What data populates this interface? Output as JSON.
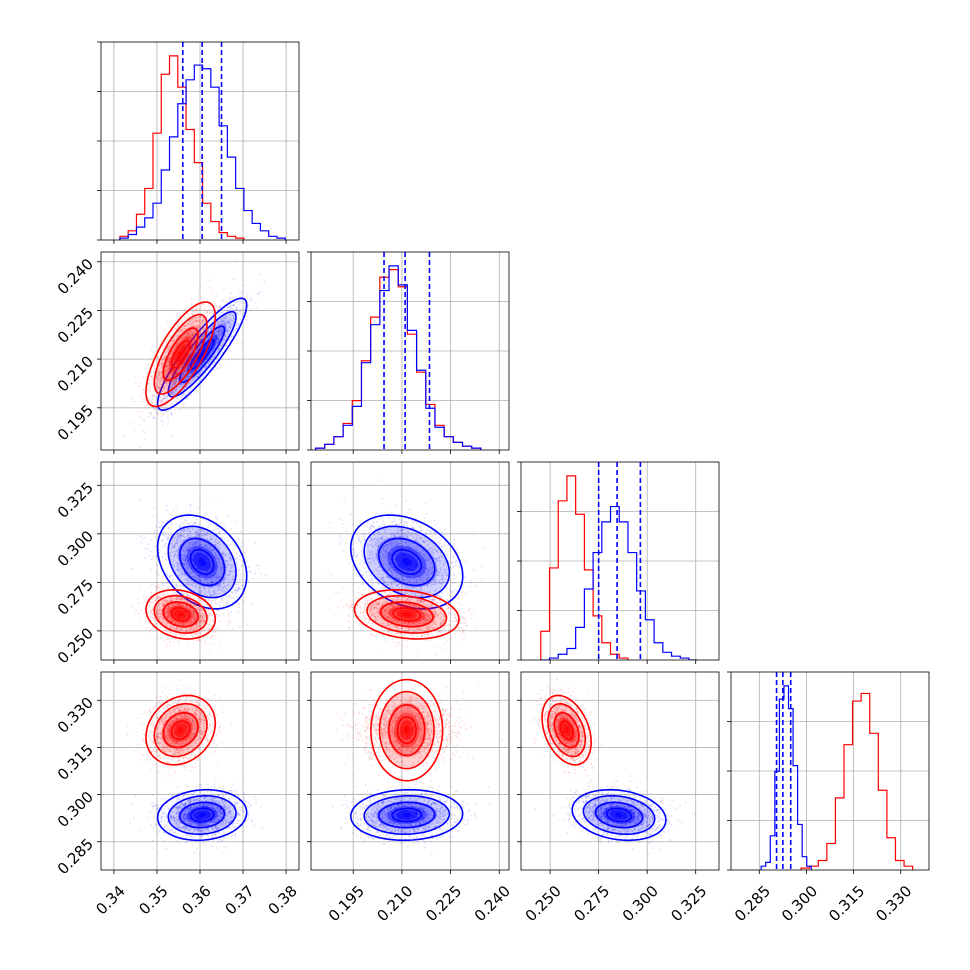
{
  "chart_data": {
    "type": "corner",
    "parameters": [
      {
        "range": [
          0.337,
          0.383
        ],
        "ticks": [
          0.34,
          0.35,
          0.36,
          0.37,
          0.38
        ],
        "tick_labels": [
          "0.34",
          "0.35",
          "0.36",
          "0.37",
          "0.38"
        ]
      },
      {
        "range": [
          0.182,
          0.243
        ],
        "ticks": [
          0.195,
          0.21,
          0.225,
          0.24
        ],
        "tick_labels": [
          "0.195",
          "0.210",
          "0.225",
          "0.240"
        ]
      },
      {
        "range": [
          0.235,
          0.337
        ],
        "ticks": [
          0.25,
          0.275,
          0.3,
          0.325
        ],
        "tick_labels": [
          "0.250",
          "0.275",
          "0.300",
          "0.325"
        ]
      },
      {
        "range": [
          0.276,
          0.339
        ],
        "ticks": [
          0.285,
          0.3,
          0.315,
          0.33
        ],
        "tick_labels": [
          "0.285",
          "0.300",
          "0.315",
          "0.330"
        ]
      }
    ],
    "series": [
      {
        "color": "#0000ff",
        "means": [
          0.3605,
          0.2115,
          0.2855,
          0.2935
        ],
        "stds": [
          0.0045,
          0.0075,
          0.0105,
          0.0035
        ],
        "correlations": [
          [
            0,
            1,
            0.88
          ],
          [
            0,
            2,
            -0.3
          ],
          [
            0,
            3,
            0.1
          ],
          [
            1,
            2,
            -0.3
          ],
          [
            1,
            3,
            0.05
          ],
          [
            2,
            3,
            -0.2
          ]
        ],
        "histograms": [
          {
            "edges_start": 0.3414,
            "bin_width": 0.00192,
            "counts": [
              0.01,
              0.03,
              0.07,
              0.12,
              0.2,
              0.38,
              0.56,
              0.74,
              0.87,
              0.95,
              0.93,
              0.83,
              0.62,
              0.45,
              0.28,
              0.16,
              0.09,
              0.05,
              0.02,
              0.01
            ]
          },
          {
            "edges_start": 0.1834,
            "bin_width": 0.00283,
            "counts": [
              0.01,
              0.03,
              0.07,
              0.13,
              0.23,
              0.46,
              0.66,
              0.84,
              0.97,
              0.87,
              0.63,
              0.42,
              0.22,
              0.12,
              0.07,
              0.04,
              0.02,
              0.01
            ]
          },
          {
            "edges_start": 0.2452,
            "bin_width": 0.00449,
            "counts": [
              0.0,
              0.01,
              0.03,
              0.06,
              0.17,
              0.37,
              0.56,
              0.72,
              0.8,
              0.72,
              0.56,
              0.36,
              0.21,
              0.09,
              0.04,
              0.02,
              0.01,
              0.0
            ]
          },
          {
            "edges_start": 0.2856,
            "bin_width": 0.00145,
            "counts": [
              0.02,
              0.04,
              0.18,
              0.52,
              0.9,
              0.97,
              0.85,
              0.55,
              0.24,
              0.07,
              0.02
            ]
          }
        ],
        "quantiles": [
          [
            0.356,
            0.3605,
            0.365
          ],
          [
            0.2045,
            0.211,
            0.2185
          ],
          [
            0.275,
            0.2845,
            0.2965
          ],
          [
            0.2905,
            0.2925,
            0.295
          ]
        ]
      },
      {
        "color": "#ff0000",
        "means": [
          0.3555,
          0.2115,
          0.2585,
          0.3205
        ],
        "stds": [
          0.0035,
          0.007,
          0.0055,
          0.0048
        ],
        "correlations": [
          [
            0,
            1,
            0.72
          ],
          [
            0,
            2,
            -0.2
          ],
          [
            0,
            3,
            0.2
          ],
          [
            1,
            2,
            -0.2
          ],
          [
            1,
            3,
            0.0
          ],
          [
            2,
            3,
            -0.35
          ]
        ],
        "histograms": [
          {
            "edges_start": 0.3414,
            "bin_width": 0.00192,
            "counts": [
              0.02,
              0.05,
              0.14,
              0.28,
              0.58,
              0.9,
              1.0,
              0.83,
              0.6,
              0.42,
              0.2,
              0.1,
              0.04,
              0.02,
              0.01
            ]
          },
          {
            "edges_start": 0.1834,
            "bin_width": 0.00283,
            "counts": [
              0.01,
              0.03,
              0.07,
              0.14,
              0.26,
              0.47,
              0.7,
              0.91,
              0.95,
              0.86,
              0.61,
              0.41,
              0.24,
              0.13,
              0.07,
              0.04,
              0.02,
              0.01
            ]
          },
          {
            "edges_start": 0.2452,
            "bin_width": 0.00449,
            "counts": [
              0.15,
              0.48,
              0.83,
              0.96,
              0.76,
              0.47,
              0.23,
              0.09,
              0.03,
              0.01
            ]
          },
          {
            "edges_start": 0.2983,
            "bin_width": 0.00273,
            "counts": [
              0.01,
              0.02,
              0.05,
              0.14,
              0.38,
              0.66,
              0.89,
              0.93,
              0.72,
              0.42,
              0.17,
              0.05,
              0.02
            ]
          }
        ]
      }
    ]
  }
}
